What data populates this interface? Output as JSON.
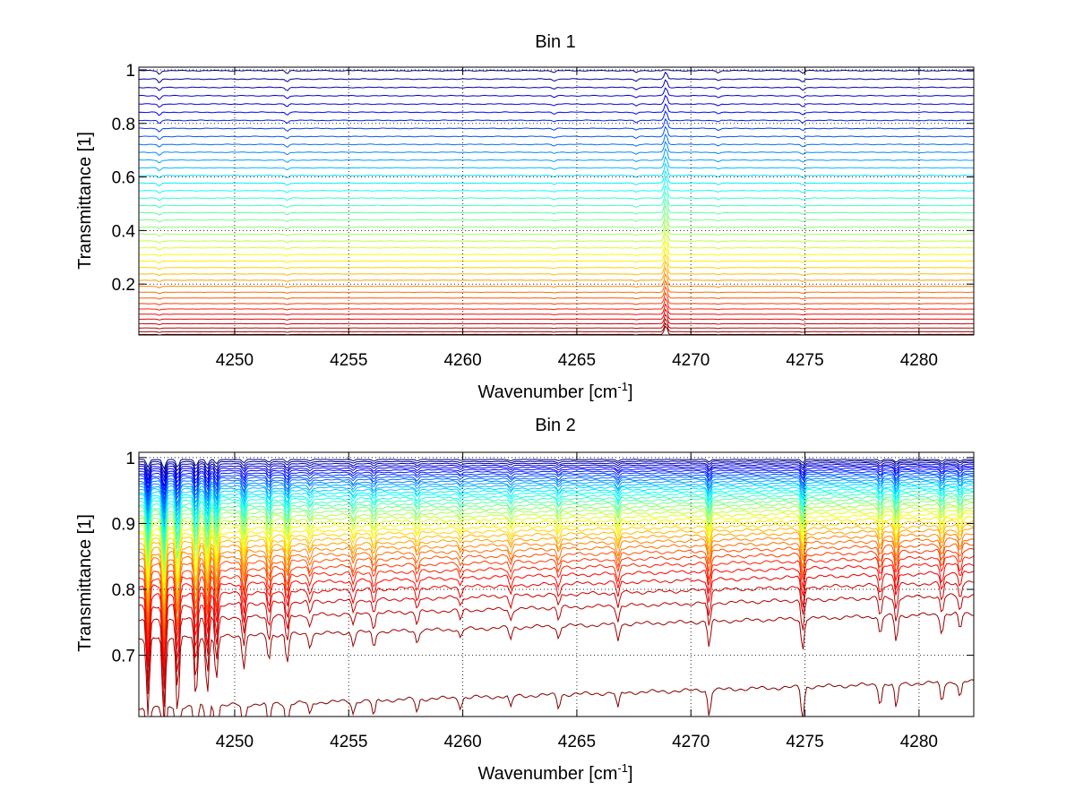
{
  "chart_data": [
    {
      "type": "line",
      "title": "Bin 1",
      "xlabel": "Wavenumber [cm",
      "xlabel_sup": "-1",
      "xlabel_end": "]",
      "ylabel": "Transmittance [1]",
      "xlim": [
        4245.8,
        4282.4
      ],
      "ylim": [
        0.01,
        1.01
      ],
      "xticks": [
        4250,
        4255,
        4260,
        4265,
        4270,
        4275,
        4280
      ],
      "xtick_labels": [
        "4250",
        "4255",
        "4260",
        "4265",
        "4270",
        "4275",
        "4280"
      ],
      "yticks": [
        0.2,
        0.4,
        0.6,
        0.8,
        1
      ],
      "ytick_labels": [
        "0.2",
        "0.4",
        "0.6",
        "0.8",
        "1"
      ],
      "grid": true,
      "colormap": "jet",
      "series_count": 40,
      "series_baseline_max": 0.997,
      "series_baseline_min": 0.012,
      "features": [
        {
          "x": 4246.7,
          "depth": 0.012,
          "kind": "dip"
        },
        {
          "x": 4252.3,
          "depth": 0.01,
          "kind": "dip"
        },
        {
          "x": 4264.0,
          "depth": 0.006,
          "kind": "dip"
        },
        {
          "x": 4267.6,
          "depth": 0.007,
          "kind": "dip"
        },
        {
          "x": 4268.9,
          "depth": 0.06,
          "kind": "peak"
        },
        {
          "x": 4271.2,
          "depth": 0.006,
          "kind": "dip"
        },
        {
          "x": 4274.9,
          "depth": 0.009,
          "kind": "dip"
        }
      ]
    },
    {
      "type": "line",
      "title": "Bin 2",
      "xlabel": "Wavenumber [cm",
      "xlabel_sup": "-1",
      "xlabel_end": "]",
      "ylabel": "Transmittance [1]",
      "xlim": [
        4245.8,
        4282.4
      ],
      "ylim": [
        0.607,
        1.008
      ],
      "xticks": [
        4250,
        4255,
        4260,
        4265,
        4270,
        4275,
        4280
      ],
      "xtick_labels": [
        "4250",
        "4255",
        "4260",
        "4265",
        "4270",
        "4275",
        "4280"
      ],
      "yticks": [
        0.7,
        0.8,
        0.9,
        1
      ],
      "ytick_labels": [
        "0.7",
        "0.8",
        "0.9",
        "1"
      ],
      "grid": true,
      "colormap": "jet",
      "series_count": 40,
      "series_baseline_max": 0.997,
      "series_baseline_min": 0.62,
      "series_slope_max": 0.04,
      "features": [
        {
          "x": 4246.2,
          "depth": 0.12
        },
        {
          "x": 4246.9,
          "depth": 0.14
        },
        {
          "x": 4247.5,
          "depth": 0.12
        },
        {
          "x": 4248.3,
          "depth": 0.1
        },
        {
          "x": 4248.8,
          "depth": 0.09
        },
        {
          "x": 4249.2,
          "depth": 0.07
        },
        {
          "x": 4250.4,
          "depth": 0.05
        },
        {
          "x": 4251.5,
          "depth": 0.04
        },
        {
          "x": 4252.3,
          "depth": 0.045
        },
        {
          "x": 4253.3,
          "depth": 0.02
        },
        {
          "x": 4255.2,
          "depth": 0.02
        },
        {
          "x": 4256.1,
          "depth": 0.025
        },
        {
          "x": 4258.0,
          "depth": 0.02
        },
        {
          "x": 4259.9,
          "depth": 0.015
        },
        {
          "x": 4262.1,
          "depth": 0.018
        },
        {
          "x": 4264.2,
          "depth": 0.02
        },
        {
          "x": 4266.8,
          "depth": 0.025
        },
        {
          "x": 4270.8,
          "depth": 0.04
        },
        {
          "x": 4274.9,
          "depth": 0.05
        },
        {
          "x": 4278.3,
          "depth": 0.03
        },
        {
          "x": 4279.0,
          "depth": 0.04
        },
        {
          "x": 4281.0,
          "depth": 0.03
        },
        {
          "x": 4281.8,
          "depth": 0.025
        }
      ]
    }
  ]
}
